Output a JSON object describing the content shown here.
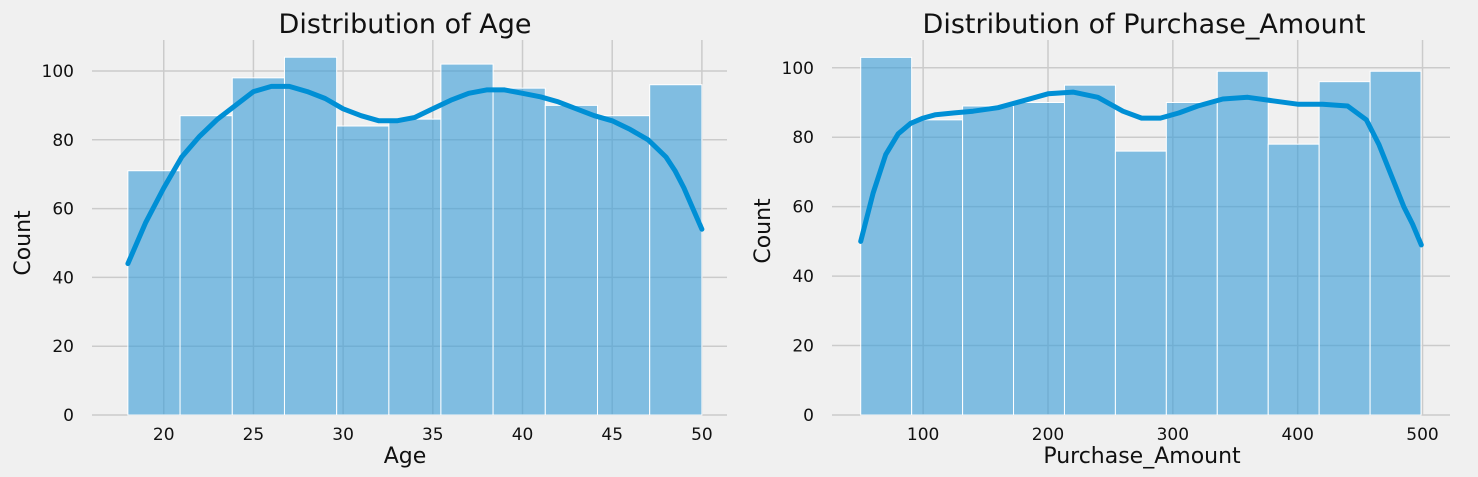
{
  "chart_data": [
    {
      "type": "histogram",
      "title": "Distribution of Age",
      "xlabel": "Age",
      "ylabel": "Count",
      "xlim": [
        16,
        51.4
      ],
      "ylim": [
        0,
        109
      ],
      "xticks": [
        20,
        25,
        30,
        35,
        40,
        45,
        50
      ],
      "yticks": [
        0,
        20,
        40,
        60,
        80,
        100
      ],
      "grid": true,
      "colors": {
        "bar": "#3c9ed8",
        "kde": "#008fd5"
      },
      "bins": [
        {
          "x0": 18.0,
          "x1": 20.91,
          "count": 71
        },
        {
          "x0": 20.91,
          "x1": 23.82,
          "count": 87
        },
        {
          "x0": 23.82,
          "x1": 26.73,
          "count": 98
        },
        {
          "x0": 26.73,
          "x1": 29.64,
          "count": 104
        },
        {
          "x0": 29.64,
          "x1": 32.55,
          "count": 84
        },
        {
          "x0": 32.55,
          "x1": 35.45,
          "count": 86
        },
        {
          "x0": 35.45,
          "x1": 38.36,
          "count": 102
        },
        {
          "x0": 38.36,
          "x1": 41.27,
          "count": 95
        },
        {
          "x0": 41.27,
          "x1": 44.18,
          "count": 90
        },
        {
          "x0": 44.18,
          "x1": 47.09,
          "count": 87
        },
        {
          "x0": 47.09,
          "x1": 50.0,
          "count": 96
        }
      ],
      "kde": {
        "x": [
          18,
          19,
          20,
          21,
          22,
          23,
          24,
          25,
          26,
          27,
          28,
          29,
          30,
          31,
          32,
          33,
          34,
          35,
          36,
          37,
          38,
          39,
          40,
          41,
          42,
          43,
          44,
          45,
          46,
          47,
          48,
          48.5,
          49,
          49.5,
          50
        ],
        "y": [
          44,
          56,
          66,
          75,
          81,
          86,
          90,
          94,
          95.5,
          95.5,
          94,
          92,
          89,
          87,
          85.5,
          85.5,
          86.5,
          89,
          91.5,
          93.5,
          94.5,
          94.5,
          93.5,
          92.5,
          91,
          89,
          87,
          85.5,
          83,
          80,
          75,
          71,
          66,
          60,
          54
        ]
      }
    },
    {
      "type": "histogram",
      "title": "Distribution of Purchase_Amount",
      "xlabel": "Purchase_Amount",
      "ylabel": "Count",
      "xlim": [
        27,
        522
      ],
      "ylim": [
        0,
        108
      ],
      "xticks": [
        100,
        200,
        300,
        400,
        500
      ],
      "yticks": [
        0,
        20,
        40,
        60,
        80,
        100
      ],
      "grid": true,
      "colors": {
        "bar": "#3c9ed8",
        "kde": "#008fd5"
      },
      "bins": [
        {
          "x0": 50,
          "x1": 90.8,
          "count": 103
        },
        {
          "x0": 90.8,
          "x1": 131.6,
          "count": 85
        },
        {
          "x0": 131.6,
          "x1": 172.4,
          "count": 89
        },
        {
          "x0": 172.4,
          "x1": 213.2,
          "count": 90
        },
        {
          "x0": 213.2,
          "x1": 254.0,
          "count": 95
        },
        {
          "x0": 254.0,
          "x1": 294.8,
          "count": 76
        },
        {
          "x0": 294.8,
          "x1": 335.6,
          "count": 90
        },
        {
          "x0": 335.6,
          "x1": 376.4,
          "count": 99
        },
        {
          "x0": 376.4,
          "x1": 417.2,
          "count": 78
        },
        {
          "x0": 417.2,
          "x1": 458.0,
          "count": 96
        },
        {
          "x0": 458.0,
          "x1": 498.8,
          "count": 99
        }
      ],
      "kde": {
        "x": [
          50,
          60,
          70,
          80,
          90,
          100,
          110,
          125,
          140,
          160,
          180,
          200,
          220,
          240,
          260,
          275,
          290,
          305,
          320,
          340,
          360,
          380,
          400,
          420,
          440,
          455,
          465,
          475,
          485,
          492,
          499
        ],
        "y": [
          50,
          64,
          75,
          81,
          84,
          85.5,
          86.5,
          87,
          87.5,
          88.5,
          90.5,
          92.5,
          93,
          91.5,
          87.5,
          85.5,
          85.5,
          87,
          89,
          91,
          91.5,
          90.5,
          89.5,
          89.5,
          89,
          85,
          78,
          69,
          60,
          55,
          49
        ]
      }
    }
  ]
}
